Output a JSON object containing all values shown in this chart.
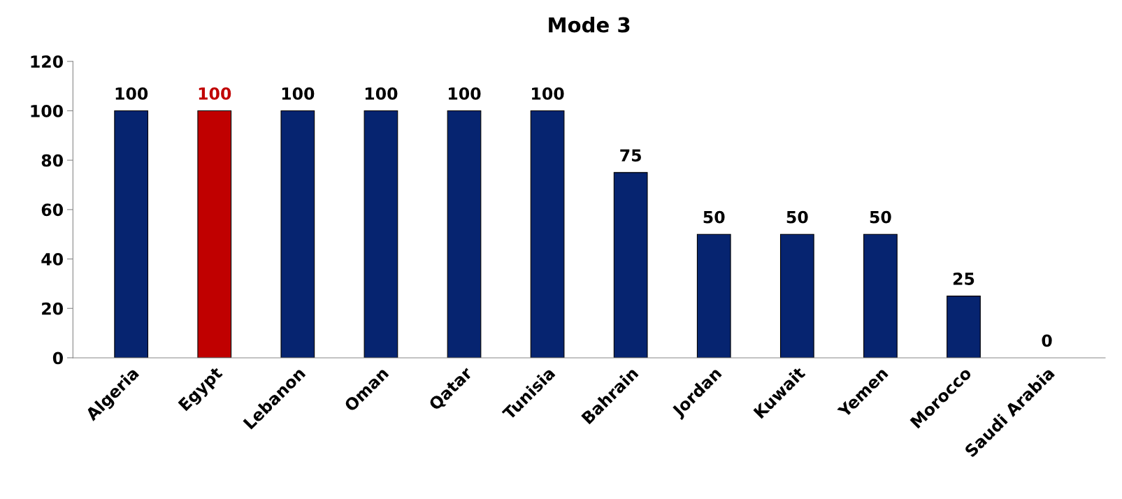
{
  "chart_data": {
    "type": "bar",
    "title": "Mode 3",
    "categories": [
      "Algeria",
      "Egypt",
      "Lebanon",
      "Oman",
      "Qatar",
      "Tunisia",
      "Bahrain",
      "Jordan",
      "Kuwait",
      "Yemen",
      "Morocco",
      "Saudi Arabia"
    ],
    "values": [
      100,
      100,
      100,
      100,
      100,
      100,
      75,
      50,
      50,
      50,
      25,
      0
    ],
    "colors": [
      "#062470",
      "#c00000",
      "#062470",
      "#062470",
      "#062470",
      "#062470",
      "#062470",
      "#062470",
      "#062470",
      "#062470",
      "#062470",
      "#062470"
    ],
    "ylim": [
      0,
      120
    ],
    "yticks": [
      0,
      20,
      40,
      60,
      80,
      100,
      120
    ],
    "grid": false,
    "legend": false,
    "data_labels": true
  }
}
